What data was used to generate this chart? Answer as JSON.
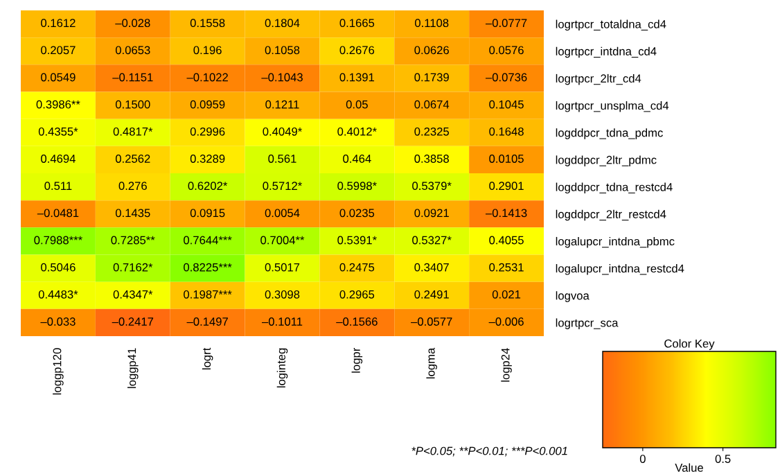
{
  "chart_data": {
    "type": "heatmap",
    "categories": [
      "loggp120",
      "loggp41",
      "logrt",
      "loginteg",
      "logpr",
      "logma",
      "logp24"
    ],
    "y_categories": [
      "logrtpcr_totaldna_cd4",
      "logrtpcr_intdna_cd4",
      "logrtpcr_2ltr_cd4",
      "logrtpcr_unsplma_cd4",
      "logddpcr_tdna_pdmc",
      "logddpcr_2ltr_pdmc",
      "logddpcr_tdna_restcd4",
      "logddpcr_2ltr_restcd4",
      "logalupcr_intdna_pbmc",
      "logalupcr_intdna_restcd4",
      "logvoa",
      "logrtpcr_sca"
    ],
    "cells": [
      [
        0.1612,
        -0.028,
        0.1558,
        0.1804,
        0.1665,
        0.1108,
        -0.0777
      ],
      [
        0.2057,
        0.0653,
        0.196,
        0.1058,
        0.2676,
        0.0626,
        0.0576
      ],
      [
        0.0549,
        -0.1151,
        -0.1022,
        -0.1043,
        0.1391,
        0.1739,
        -0.0736
      ],
      [
        0.3986,
        0.15,
        0.0959,
        0.1211,
        0.05,
        0.0674,
        0.1045
      ],
      [
        0.4355,
        0.4817,
        0.2996,
        0.4049,
        0.4012,
        0.2325,
        0.1648
      ],
      [
        0.4694,
        0.2562,
        0.3289,
        0.561,
        0.464,
        0.3858,
        0.0105
      ],
      [
        0.511,
        0.276,
        0.6202,
        0.5712,
        0.5998,
        0.5379,
        0.2901
      ],
      [
        -0.0481,
        0.1435,
        0.0915,
        0.0054,
        0.0235,
        0.0921,
        -0.1413
      ],
      [
        0.7988,
        0.7285,
        0.7644,
        0.7004,
        0.5391,
        0.5327,
        0.4055
      ],
      [
        0.5046,
        0.7162,
        0.8225,
        0.5017,
        0.2475,
        0.3407,
        0.2531
      ],
      [
        0.4483,
        0.4347,
        0.1987,
        0.3098,
        0.2965,
        0.2491,
        0.021
      ],
      [
        -0.033,
        -0.2417,
        -0.1497,
        -0.1011,
        -0.1566,
        -0.0577,
        -0.006
      ]
    ],
    "cell_labels": [
      [
        "0.1612",
        "–0.028",
        "0.1558",
        "0.1804",
        "0.1665",
        "0.1108",
        "–0.0777"
      ],
      [
        "0.2057",
        "0.0653",
        "0.196",
        "0.1058",
        "0.2676",
        "0.0626",
        "0.0576"
      ],
      [
        "0.0549",
        "–0.1151",
        "–0.1022",
        "–0.1043",
        "0.1391",
        "0.1739",
        "–0.0736"
      ],
      [
        "0.3986**",
        "0.1500",
        "0.0959",
        "0.1211",
        "0.05",
        "0.0674",
        "0.1045"
      ],
      [
        "0.4355*",
        "0.4817*",
        "0.2996",
        "0.4049*",
        "0.4012*",
        "0.2325",
        "0.1648"
      ],
      [
        "0.4694",
        "0.2562",
        "0.3289",
        "0.561",
        "0.464",
        "0.3858",
        "0.0105"
      ],
      [
        "0.511",
        "0.276",
        "0.6202*",
        "0.5712*",
        "0.5998*",
        "0.5379*",
        "0.2901"
      ],
      [
        "–0.0481",
        "0.1435",
        "0.0915",
        "0.0054",
        "0.0235",
        "0.0921",
        "–0.1413"
      ],
      [
        "0.7988***",
        "0.7285**",
        "0.7644***",
        "0.7004**",
        "0.5391*",
        "0.5327*",
        "0.4055"
      ],
      [
        "0.5046",
        "0.7162*",
        "0.8225***",
        "0.5017",
        "0.2475",
        "0.3407",
        "0.2531"
      ],
      [
        "0.4483*",
        "0.4347*",
        "0.1987***",
        "0.3098",
        "0.2965",
        "0.2491",
        "0.021"
      ],
      [
        "–0.033",
        "–0.2417",
        "–0.1497",
        "–0.1011",
        "–0.1566",
        "–0.0577",
        "–0.006"
      ]
    ],
    "colors": [
      "#ff6a10",
      "#ff9000",
      "#ffbf00",
      "#ffff00",
      "#ccff00",
      "#88ff00"
    ],
    "clim": [
      -0.25,
      0.83
    ],
    "cticks": [
      0,
      0.5
    ],
    "clabel": "Value",
    "annotations": [
      "*P<0.05; **P<0.01; ***P<0.001",
      "Color Key"
    ]
  }
}
